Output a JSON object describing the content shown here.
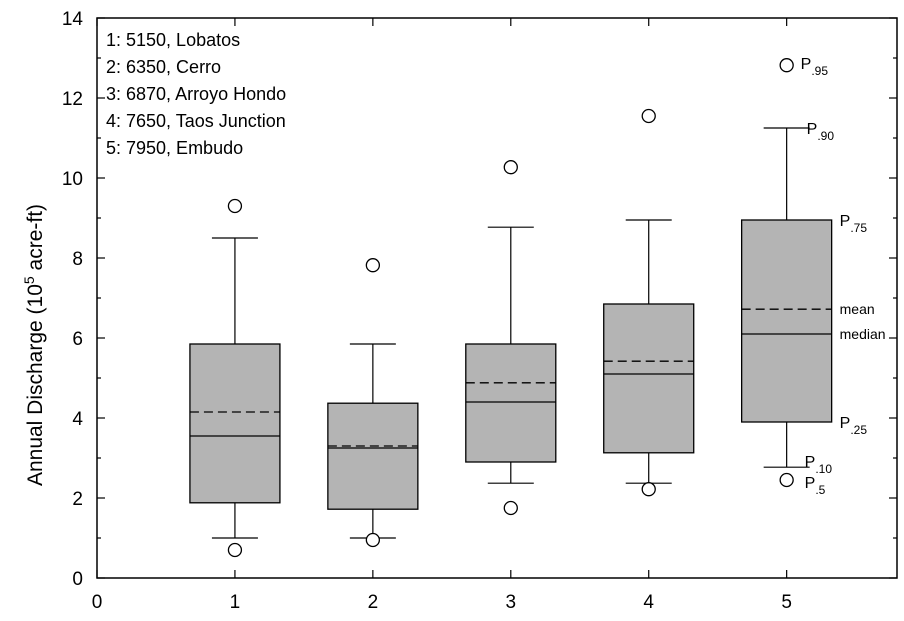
{
  "chart_data": {
    "type": "box",
    "xlabel": "",
    "ylabel": "Annual Discharge (10",
    "ylabel_sup": "5",
    "ylabel_unit": " acre-ft)",
    "xlim": [
      0,
      5.8
    ],
    "ylim": [
      0,
      14
    ],
    "x_ticks": [
      "0",
      "1",
      "2",
      "3",
      "4",
      "5"
    ],
    "y_ticks": [
      "0",
      "2",
      "4",
      "6",
      "8",
      "10",
      "12",
      "14"
    ],
    "box_color": "#b4b4b4",
    "legend": [
      "1:  5150, Lobatos",
      "2:  6350, Cerro",
      "3:  6870, Arroyo Hondo",
      "4:  7650, Taos Junction",
      "5:  7950, Embudo"
    ],
    "boxes": [
      {
        "x": 1,
        "p5": 0.7,
        "p10": 1.0,
        "p25": 1.88,
        "median": 3.55,
        "mean": 4.15,
        "p75": 5.85,
        "p90": 8.5,
        "p95": 9.3
      },
      {
        "x": 2,
        "p5": 0.95,
        "p10": 1.0,
        "p25": 1.72,
        "median": 3.25,
        "mean": 3.3,
        "p75": 4.37,
        "p90": 5.85,
        "p95": 7.82
      },
      {
        "x": 3,
        "p5": 1.75,
        "p10": 2.37,
        "p25": 2.9,
        "median": 4.4,
        "mean": 4.88,
        "p75": 5.85,
        "p90": 8.77,
        "p95": 10.27
      },
      {
        "x": 4,
        "p5": 2.22,
        "p10": 2.37,
        "p25": 3.13,
        "median": 5.1,
        "mean": 5.42,
        "p75": 6.85,
        "p90": 8.95,
        "p95": 11.55
      },
      {
        "x": 5,
        "p5": 2.45,
        "p10": 2.77,
        "p25": 3.9,
        "median": 6.1,
        "mean": 6.72,
        "p75": 8.95,
        "p90": 11.25,
        "p95": 12.82
      }
    ],
    "annotations": {
      "p95": {
        "main": "P",
        "sub": ".95"
      },
      "p90": {
        "main": "P",
        "sub": ".90"
      },
      "p75": {
        "main": "P",
        "sub": ".75"
      },
      "mean": {
        "main": "mean"
      },
      "median": {
        "main": "median"
      },
      "p25": {
        "main": "P",
        "sub": ".25"
      },
      "p10": {
        "main": "P",
        "sub": ".10"
      },
      "p5": {
        "main": "P",
        "sub": ".5"
      }
    }
  }
}
